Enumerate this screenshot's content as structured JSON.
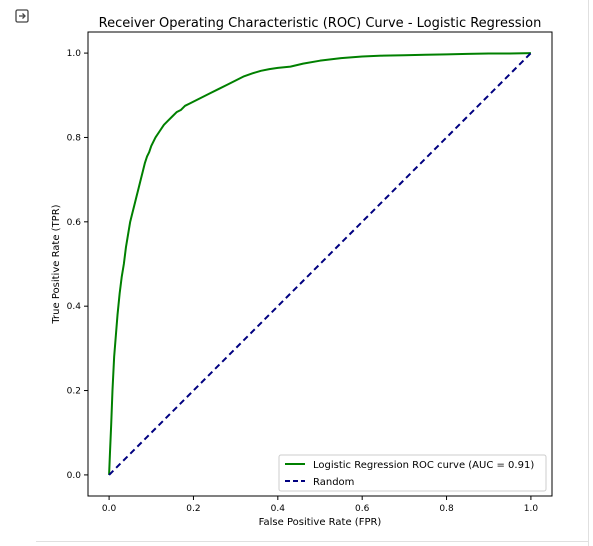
{
  "output_area": {
    "icon": "output-redirect-icon"
  },
  "chart_data": {
    "type": "line",
    "title": "Receiver Operating Characteristic (ROC) Curve - Logistic Regression",
    "xlabel": "False Positive Rate (FPR)",
    "ylabel": "True Positive Rate (TPR)",
    "xlim": [
      -0.05,
      1.05
    ],
    "ylim": [
      -0.05,
      1.05
    ],
    "xticks": [
      0.0,
      0.2,
      0.4,
      0.6,
      0.8,
      1.0
    ],
    "yticks": [
      0.0,
      0.2,
      0.4,
      0.6,
      0.8,
      1.0
    ],
    "xtick_labels": [
      "0.0",
      "0.2",
      "0.4",
      "0.6",
      "0.8",
      "1.0"
    ],
    "ytick_labels": [
      "0.0",
      "0.2",
      "0.4",
      "0.6",
      "0.8",
      "1.0"
    ],
    "grid": false,
    "legend_position": "lower-right",
    "series": [
      {
        "name": "Logistic Regression ROC curve (AUC = 0.91)",
        "color": "#008000",
        "style": "solid",
        "x": [
          0.0,
          0.002,
          0.005,
          0.008,
          0.012,
          0.016,
          0.02,
          0.025,
          0.03,
          0.035,
          0.04,
          0.045,
          0.05,
          0.055,
          0.06,
          0.065,
          0.07,
          0.075,
          0.08,
          0.085,
          0.09,
          0.095,
          0.1,
          0.11,
          0.12,
          0.13,
          0.14,
          0.15,
          0.16,
          0.17,
          0.18,
          0.19,
          0.2,
          0.22,
          0.24,
          0.26,
          0.28,
          0.3,
          0.32,
          0.34,
          0.36,
          0.38,
          0.4,
          0.43,
          0.46,
          0.5,
          0.55,
          0.6,
          0.65,
          0.7,
          0.75,
          0.8,
          0.85,
          0.9,
          0.95,
          1.0
        ],
        "y": [
          0.0,
          0.05,
          0.12,
          0.2,
          0.28,
          0.33,
          0.38,
          0.43,
          0.47,
          0.5,
          0.54,
          0.57,
          0.6,
          0.62,
          0.64,
          0.66,
          0.68,
          0.7,
          0.72,
          0.74,
          0.755,
          0.765,
          0.78,
          0.8,
          0.815,
          0.83,
          0.84,
          0.85,
          0.86,
          0.865,
          0.875,
          0.88,
          0.885,
          0.895,
          0.905,
          0.915,
          0.925,
          0.935,
          0.945,
          0.952,
          0.958,
          0.962,
          0.965,
          0.968,
          0.975,
          0.982,
          0.988,
          0.992,
          0.994,
          0.995,
          0.996,
          0.997,
          0.998,
          0.999,
          0.999,
          1.0
        ]
      },
      {
        "name": "Random",
        "color": "#000080",
        "style": "dashed",
        "x": [
          0.0,
          1.0
        ],
        "y": [
          0.0,
          1.0
        ]
      }
    ]
  }
}
